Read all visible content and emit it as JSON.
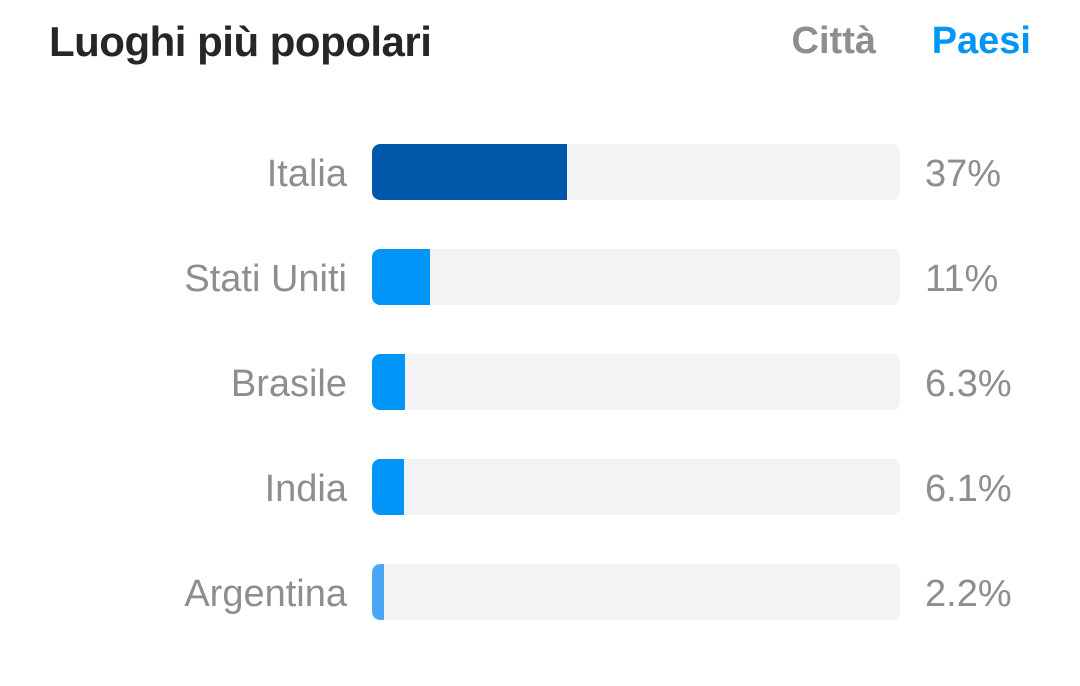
{
  "header": {
    "title": "Luoghi più popolari",
    "tabs": [
      {
        "label": "Città",
        "active": false
      },
      {
        "label": "Paesi",
        "active": true
      }
    ]
  },
  "colors": {
    "top_bar": "#0056a8",
    "bar": "#0095f6",
    "small_bar": "#4aa8f2",
    "track": "#f3f2f4",
    "active_tab": "#0095f6",
    "inactive_tab": "#8e8e8e",
    "label_text": "#8e8e8e"
  },
  "chart_data": {
    "type": "bar",
    "orientation": "horizontal",
    "title": "Luoghi più popolari",
    "categories": [
      "Italia",
      "Stati Uniti",
      "Brasile",
      "India",
      "Argentina"
    ],
    "values": [
      37,
      11,
      6.3,
      6.1,
      2.2
    ],
    "value_labels": [
      "37%",
      "11%",
      "6.3%",
      "6.1%",
      "2.2%"
    ],
    "xlim": [
      0,
      100
    ],
    "unit": "%",
    "grid": false,
    "legend": "none"
  }
}
